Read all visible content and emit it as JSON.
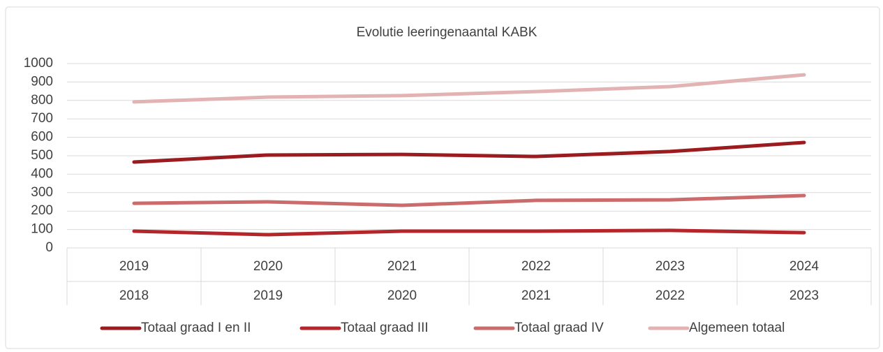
{
  "chart_data": {
    "type": "line",
    "title": "Evolutie leeringenaantal KABK",
    "categories": [
      "2019",
      "2020",
      "2021",
      "2022",
      "2023",
      "2024"
    ],
    "categories_level2": [
      "2018",
      "2019",
      "2020",
      "2021",
      "2022",
      "2023"
    ],
    "series": [
      {
        "name": "Totaal graad I en II",
        "color": "#9b1b1e",
        "values": [
          466,
          504,
          507,
          496,
          523,
          572
        ]
      },
      {
        "name": "Totaal graad III",
        "color": "#b5262a",
        "values": [
          91,
          72,
          91,
          91,
          95,
          83
        ]
      },
      {
        "name": "Totaal graad IV",
        "color": "#cb6b6c",
        "values": [
          242,
          250,
          231,
          258,
          261,
          284
        ]
      },
      {
        "name": "Algemeen totaal",
        "color": "#e3b3b3",
        "values": [
          792,
          818,
          826,
          848,
          875,
          939
        ]
      }
    ],
    "ylim": [
      0,
      1000
    ],
    "yticks": [
      0,
      100,
      200,
      300,
      400,
      500,
      600,
      700,
      800,
      900,
      1000
    ],
    "grid": true,
    "legend": "bottom"
  }
}
